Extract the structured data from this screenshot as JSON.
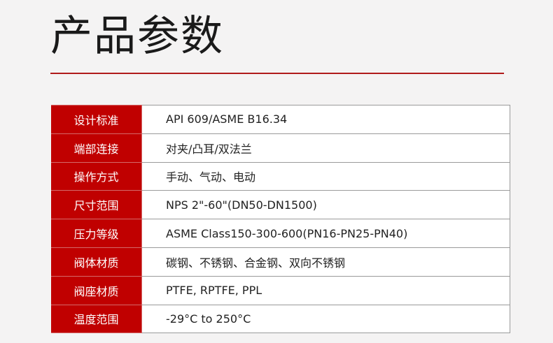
{
  "title": "产品参数",
  "accent_color": "#c00000",
  "params": [
    {
      "label": "设计标准",
      "value": "API 609/ASME B16.34"
    },
    {
      "label": "端部连接",
      "value": "对夹/凸耳/双法兰"
    },
    {
      "label": "操作方式",
      "value": "手动、气动、电动"
    },
    {
      "label": "尺寸范围",
      "value": "NPS 2\"-60\"(DN50-DN1500)"
    },
    {
      "label": "压力等级",
      "value": "ASME Class150-300-600(PN16-PN25-PN40)"
    },
    {
      "label": "阀体材质",
      "value": "碳钢、不锈钢、合金钢、双向不锈钢"
    },
    {
      "label": "阀座材质",
      "value": "PTFE, RPTFE, PPL"
    },
    {
      "label": "温度范围",
      "value": "-29°C to 250°C"
    }
  ]
}
